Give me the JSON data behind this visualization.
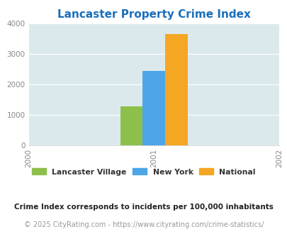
{
  "title": "Lancaster Property Crime Index",
  "title_color": "#1a6fbb",
  "title_fontsize": 11,
  "bar_categories": [
    2001
  ],
  "bar_values": {
    "Lancaster Village": [
      1270
    ],
    "New York": [
      2430
    ],
    "National": [
      3640
    ]
  },
  "bar_colors": {
    "Lancaster Village": "#8dc04b",
    "New York": "#4da6e8",
    "National": "#f5a623"
  },
  "bar_width": 0.18,
  "xlim": [
    2000,
    2002
  ],
  "ylim": [
    0,
    4000
  ],
  "yticks": [
    0,
    1000,
    2000,
    3000,
    4000
  ],
  "xticks": [
    2000,
    2001,
    2002
  ],
  "background_color": "#dce9ec",
  "figure_background": "#ffffff",
  "grid_color": "#ffffff",
  "legend_labels": [
    "Lancaster Village",
    "New York",
    "National"
  ],
  "footnote1": "Crime Index corresponds to incidents per 100,000 inhabitants",
  "footnote2": "© 2025 CityRating.com - https://www.cityrating.com/crime-statistics/",
  "footnote1_color": "#222222",
  "footnote2_color": "#999999",
  "footnote1_fontsize": 7.5,
  "footnote2_fontsize": 7.0
}
